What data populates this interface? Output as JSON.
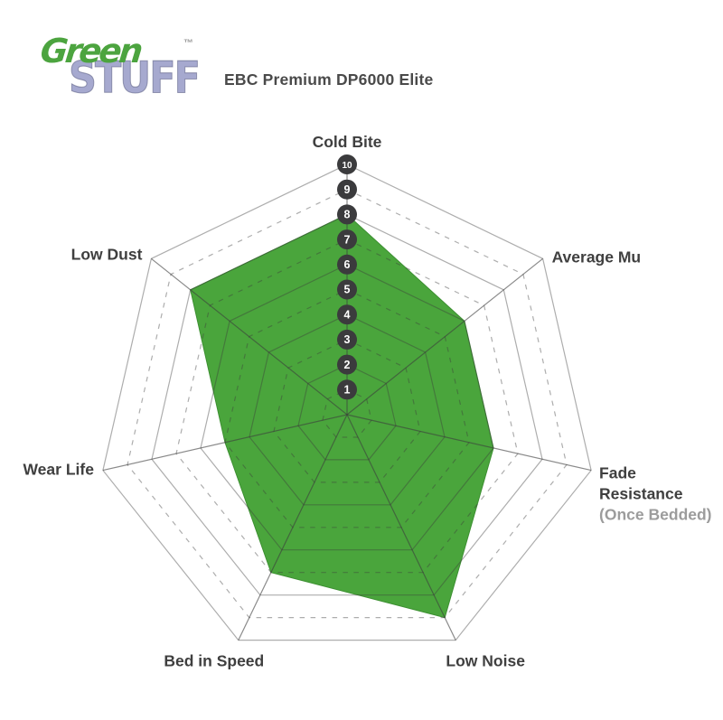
{
  "header": {
    "logo": {
      "word_top": "Green",
      "word_bottom": "STUFF",
      "trademark": "™"
    },
    "title": "EBC Premium DP6000 Elite"
  },
  "palette": {
    "green_fill": "#4aa53c",
    "polygon_edge": "#3c8f31",
    "badge_bg": "#3b3b3d",
    "badge_text": "#ffffff",
    "grid_line": "rgba(60,60,60,0.42)",
    "spoke_line": "rgba(60,60,60,0.60)",
    "axis_label": "#3f3f3f",
    "sublabel": "#9c9c9c",
    "title_text": "#4a4a4a",
    "logo_green": "#4ca43f",
    "logo_purple": "#a6a9cf",
    "trademark": "#9a9a9a"
  },
  "chart_data": {
    "type": "radar",
    "title": "EBC Premium DP6000 Elite",
    "scale": {
      "min": 1,
      "max": 10,
      "tick_labels": [
        "1",
        "2",
        "3",
        "4",
        "5",
        "6",
        "7",
        "8",
        "9",
        "10"
      ],
      "tick_axis": "Cold Bite",
      "grid_style": "even rings solid, odd rings dashed"
    },
    "axes": [
      {
        "label": "Cold Bite",
        "sublabel": "",
        "value": 8
      },
      {
        "label": "Average Mu",
        "sublabel": "",
        "value": 6
      },
      {
        "label": "Fade Resistance",
        "sublabel": "(Once Bedded)",
        "value": 6
      },
      {
        "label": "Low Noise",
        "sublabel": "",
        "value": 9
      },
      {
        "label": "Bed in Speed",
        "sublabel": "",
        "value": 7
      },
      {
        "label": "Wear Life",
        "sublabel": "",
        "value": 5
      },
      {
        "label": "Low Dust",
        "sublabel": "",
        "value": 8
      }
    ],
    "legend_position": "none",
    "series": [
      {
        "name": "EBC Premium DP6000 Elite",
        "values": [
          8,
          6,
          6,
          9,
          7,
          5,
          8
        ]
      }
    ]
  }
}
